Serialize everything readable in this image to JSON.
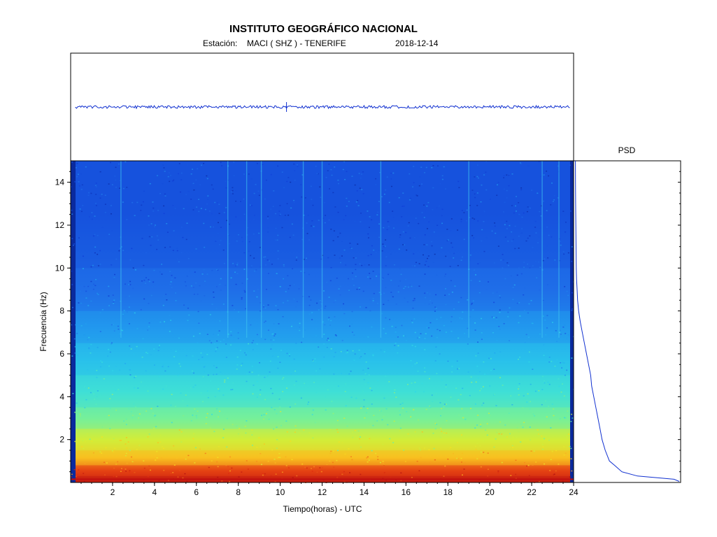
{
  "header": {
    "title": "INSTITUTO GEOGRÁFICO NACIONAL",
    "station_label": "Estación:",
    "station": "MACI ( SHZ ) - TENERIFE",
    "date": "2018-12-14"
  },
  "colors": {
    "trace": "#1030d0",
    "colormap": [
      "#0a2a9e",
      "#1040d8",
      "#1f6ee8",
      "#22a8f0",
      "#2fd8e8",
      "#60f0b0",
      "#c8f040",
      "#f8e020",
      "#f89020",
      "#e03010",
      "#b01010"
    ]
  },
  "chart_data": {
    "type": "heatmap",
    "title": "INSTITUTO GEOGRÁFICO NACIONAL",
    "xlabel": "Tiempo(horas) - UTC",
    "ylabel": "Frecuencia  (Hz)",
    "xlim": [
      0,
      24
    ],
    "ylim": [
      0,
      15
    ],
    "x_ticks": [
      2,
      4,
      6,
      8,
      10,
      12,
      14,
      16,
      18,
      20,
      22,
      24
    ],
    "y_ticks": [
      2,
      4,
      6,
      8,
      10,
      12,
      14
    ],
    "psd_label": "PSD",
    "bands": [
      {
        "f0": 0,
        "f1": 0.3,
        "level": 0.95
      },
      {
        "f0": 0.3,
        "f1": 0.8,
        "level": 0.88
      },
      {
        "f0": 0.8,
        "f1": 1.5,
        "level": 0.74
      },
      {
        "f0": 1.5,
        "f1": 2.5,
        "level": 0.62
      },
      {
        "f0": 2.5,
        "f1": 3.5,
        "level": 0.52
      },
      {
        "f0": 3.5,
        "f1": 5,
        "level": 0.43
      },
      {
        "f0": 5,
        "f1": 6.5,
        "level": 0.35
      },
      {
        "f0": 6.5,
        "f1": 8,
        "level": 0.27
      },
      {
        "f0": 8,
        "f1": 10,
        "level": 0.2
      },
      {
        "f0": 10,
        "f1": 15,
        "level": 0.14
      }
    ],
    "vertical_streaks_hours": [
      2.4,
      7.5,
      8.4,
      9.1,
      11.1,
      12.0,
      14.8,
      19.0,
      22.5,
      23.3
    ],
    "psd": {
      "freq_hz": [
        0.05,
        0.15,
        0.3,
        0.5,
        0.8,
        1.0,
        1.5,
        2.0,
        2.5,
        3.0,
        3.5,
        4.0,
        4.5,
        5.0,
        5.5,
        6.0,
        6.5,
        7.0,
        7.5,
        8.0,
        8.5,
        9.0,
        9.5,
        10.0,
        11.0,
        12.0,
        13.0,
        14.0,
        15.0
      ],
      "amplitude": [
        1.0,
        0.95,
        0.6,
        0.45,
        0.38,
        0.33,
        0.29,
        0.26,
        0.24,
        0.22,
        0.2,
        0.18,
        0.16,
        0.15,
        0.13,
        0.11,
        0.09,
        0.07,
        0.05,
        0.035,
        0.025,
        0.02,
        0.015,
        0.012,
        0.01,
        0.008,
        0.006,
        0.005,
        0.004
      ]
    }
  }
}
